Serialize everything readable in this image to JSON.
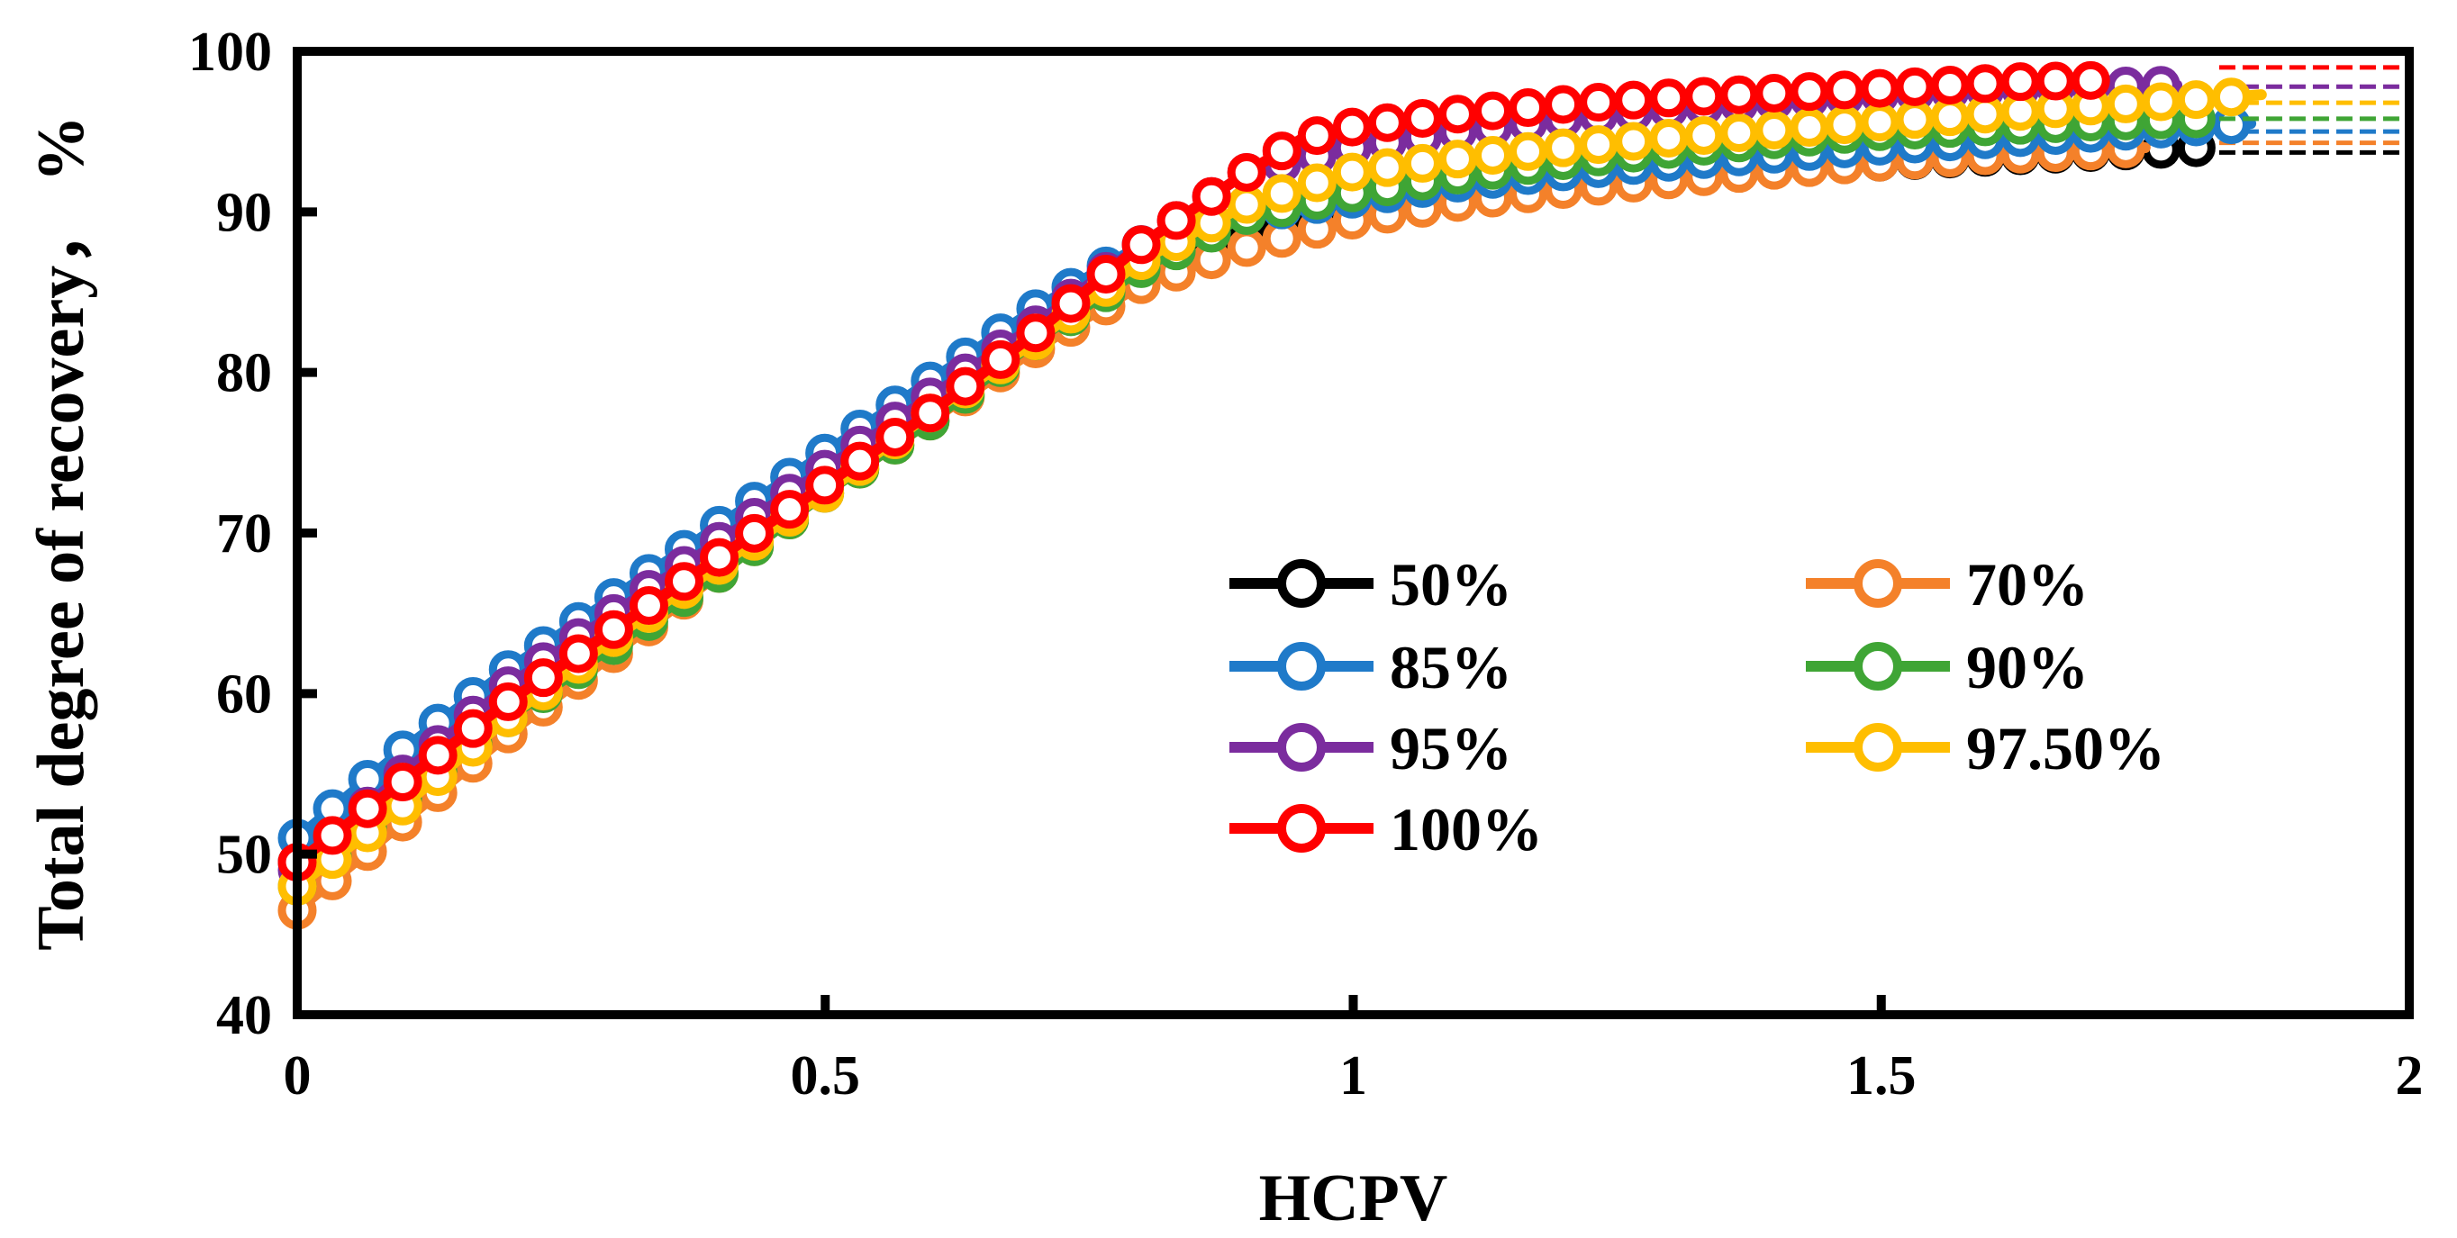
{
  "chart_data": {
    "type": "line",
    "xlabel": "HCPV",
    "ylabel": "Total degree of recovery， %",
    "xlim": [
      0,
      2
    ],
    "ylim": [
      40,
      100
    ],
    "xticks": [
      "0",
      "0.5",
      "1",
      "1.5",
      "2"
    ],
    "yticks": [
      "40",
      "50",
      "60",
      "70",
      "80",
      "90",
      "100"
    ],
    "grid": false,
    "legend_position": "center-right",
    "series": [
      {
        "name": "50%",
        "color": "#000000",
        "x": [
          0,
          0.1,
          0.2,
          0.3,
          0.4,
          0.5,
          0.6,
          0.7,
          0.8,
          0.9,
          1.0,
          1.1,
          1.2,
          1.3,
          1.4,
          1.5,
          1.6,
          1.7,
          1.8
        ],
        "y": [
          49.5,
          55,
          60,
          64.5,
          69,
          73.5,
          78,
          82.5,
          86.5,
          88.5,
          89.8,
          90.8,
          91.6,
          92.2,
          92.7,
          93.1,
          93.4,
          93.7,
          94.0
        ],
        "plateau": 93.7
      },
      {
        "name": "70%",
        "color": "#F4812A",
        "x": [
          0,
          0.1,
          0.2,
          0.3,
          0.4,
          0.5,
          0.6,
          0.7,
          0.8,
          0.9,
          1.0,
          1.1,
          1.2,
          1.3,
          1.4,
          1.5,
          1.6,
          1.7,
          1.75
        ],
        "y": [
          46.5,
          52,
          57.5,
          62.5,
          67.5,
          72.5,
          77,
          81.5,
          85.5,
          87.8,
          89.5,
          90.6,
          91.4,
          92.0,
          92.6,
          93.1,
          93.5,
          93.8,
          94.0
        ],
        "plateau": 94.3
      },
      {
        "name": "85%",
        "color": "#1F7AC9",
        "x": [
          0,
          0.1,
          0.2,
          0.3,
          0.4,
          0.5,
          0.6,
          0.7,
          0.8,
          0.9,
          1.0,
          1.1,
          1.2,
          1.3,
          1.4,
          1.5,
          1.6,
          1.7,
          1.8,
          1.85
        ],
        "y": [
          51,
          56.5,
          61.5,
          66,
          70.5,
          75,
          79.5,
          84,
          88,
          89.8,
          90.8,
          91.8,
          92.5,
          93.1,
          93.6,
          94.1,
          94.5,
          94.9,
          95.3,
          95.5
        ],
        "plateau": 95.0
      },
      {
        "name": "90%",
        "color": "#3FA535",
        "x": [
          0,
          0.1,
          0.2,
          0.3,
          0.4,
          0.5,
          0.6,
          0.7,
          0.8,
          0.9,
          1.0,
          1.1,
          1.2,
          1.3,
          1.4,
          1.5,
          1.6,
          1.7,
          1.8
        ],
        "y": [
          48,
          53.5,
          58.5,
          63,
          67.5,
          72.5,
          77,
          82,
          86.5,
          89.8,
          91.2,
          92.3,
          93.2,
          93.9,
          94.5,
          95.0,
          95.3,
          95.6,
          95.8
        ],
        "plateau": 95.8
      },
      {
        "name": "95%",
        "color": "#7B2C9E",
        "x": [
          0,
          0.1,
          0.2,
          0.3,
          0.4,
          0.5,
          0.6,
          0.7,
          0.8,
          0.9,
          1.0,
          1.1,
          1.2,
          1.3,
          1.4,
          1.5,
          1.6,
          1.7,
          1.78
        ],
        "y": [
          49,
          55,
          60.5,
          65,
          69.5,
          74,
          78.5,
          83,
          88,
          92.5,
          94.0,
          95.0,
          95.8,
          96.4,
          96.9,
          97.3,
          97.6,
          97.8,
          97.9
        ],
        "plateau": 97.8
      },
      {
        "name": "97.50%",
        "color": "#FFBE00",
        "x": [
          0,
          0.1,
          0.2,
          0.3,
          0.4,
          0.5,
          0.6,
          0.7,
          0.8,
          0.9,
          1.0,
          1.1,
          1.2,
          1.3,
          1.4,
          1.5,
          1.6,
          1.7,
          1.8,
          1.86
        ],
        "y": [
          48,
          53,
          58.5,
          63.5,
          68,
          72.5,
          77.5,
          82,
          87,
          90.5,
          92.5,
          93.3,
          94.0,
          94.6,
          95.1,
          95.6,
          96.1,
          96.6,
          97.0,
          97.3
        ],
        "plateau": 96.8
      },
      {
        "name": "100%",
        "color": "#FF0000",
        "x": [
          0,
          0.1,
          0.2,
          0.3,
          0.4,
          0.5,
          0.6,
          0.7,
          0.8,
          0.9,
          0.95,
          1.0,
          1.1,
          1.2,
          1.3,
          1.4,
          1.5,
          1.6,
          1.62,
          1.71
        ],
        "y": [
          49.5,
          54.5,
          59.5,
          64,
          68.5,
          73,
          77.5,
          82.5,
          88,
          92.5,
          94.5,
          95.3,
          96.1,
          96.7,
          97.1,
          97.4,
          97.7,
          98.0,
          98.1,
          98.2
        ],
        "plateau": 99.0
      }
    ]
  }
}
